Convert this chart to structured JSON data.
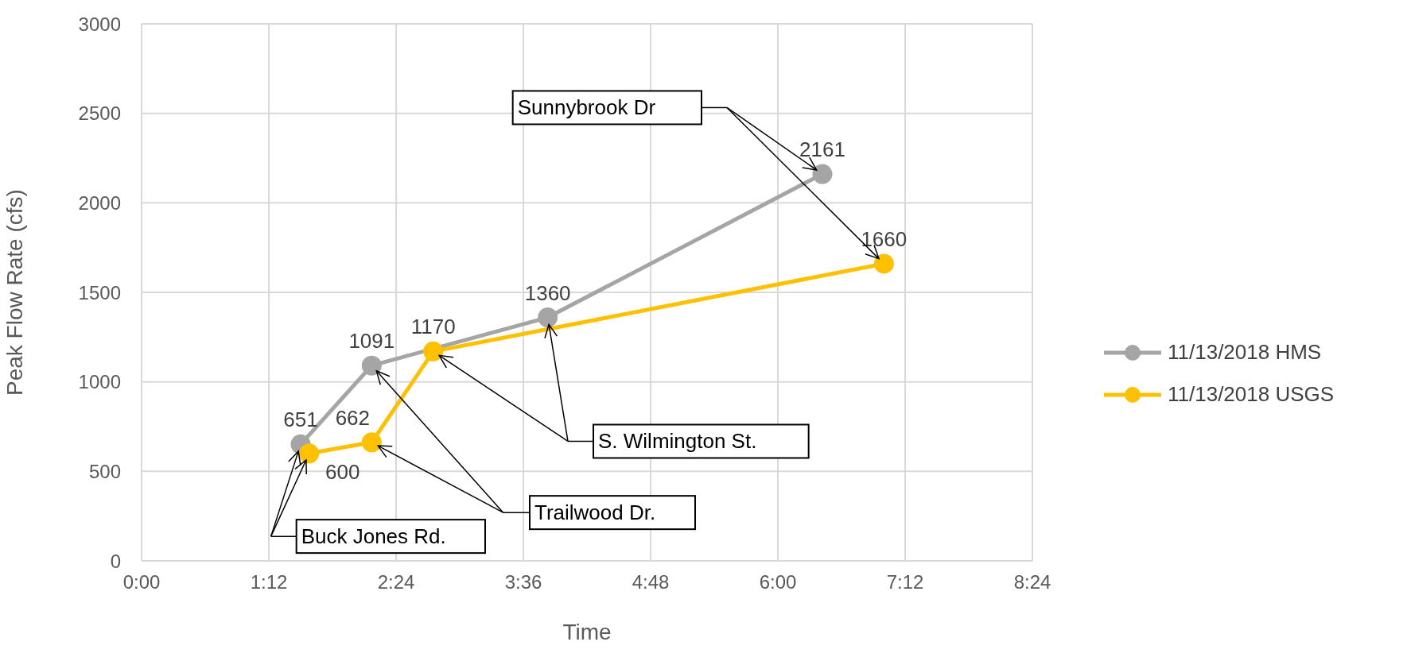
{
  "chart_data": {
    "type": "line",
    "xlabel": "Time",
    "ylabel": "Peak Flow Rate (cfs)",
    "xlim": [
      0,
      8.4
    ],
    "xticks": [
      {
        "value": 0,
        "label": "0:00"
      },
      {
        "value": 1.2,
        "label": "1:12"
      },
      {
        "value": 2.4,
        "label": "2:24"
      },
      {
        "value": 3.6,
        "label": "3:36"
      },
      {
        "value": 4.8,
        "label": "4:48"
      },
      {
        "value": 6,
        "label": "6:00"
      },
      {
        "value": 7.2,
        "label": "7:12"
      },
      {
        "value": 8.4,
        "label": "8:24"
      }
    ],
    "ylim": [
      0,
      3000
    ],
    "yticks": [
      0,
      500,
      1000,
      1500,
      2000,
      2500,
      3000
    ],
    "series": [
      {
        "name": "11/13/2018 HMS",
        "color": "#a5a5a5",
        "x": [
          1.5,
          2.17,
          3.83,
          6.42
        ],
        "values": [
          651,
          1091,
          1360,
          2161
        ]
      },
      {
        "name": "11/13/2018 USGS",
        "color": "#ffc000",
        "x": [
          1.58,
          2.17,
          2.75,
          7.0
        ],
        "values": [
          600,
          662,
          1170,
          1660
        ]
      }
    ],
    "data_labels": true,
    "grid": true,
    "legend": "right",
    "marker": "circle",
    "line_style": "solid",
    "annotations": [
      "Sunnybrook Dr",
      "S. Wilmington St.",
      "Trailwood Dr.",
      "Buck Jones Rd."
    ]
  }
}
